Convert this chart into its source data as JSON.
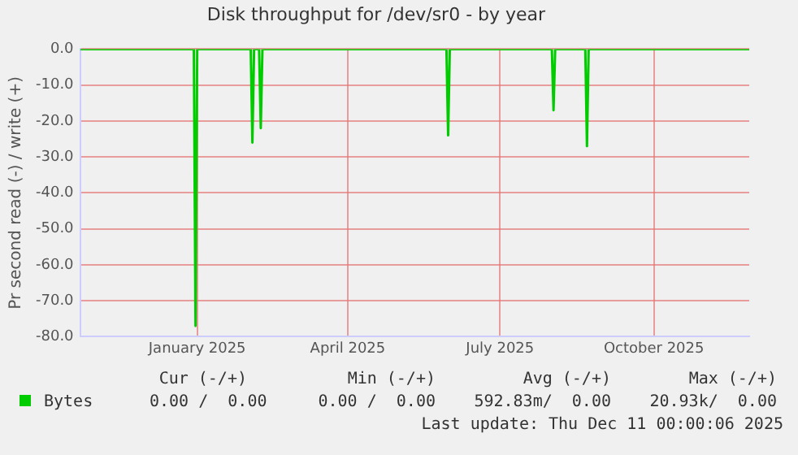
{
  "chart_data": {
    "type": "line",
    "title": "Disk throughput for /dev/sr0 - by year",
    "ylabel": "Pr second read (-) / write (+)",
    "x": [
      "2024-10-23",
      "2024-12-30",
      "2024-12-31",
      "2025-01-01",
      "2025-02-02",
      "2025-02-03",
      "2025-02-04",
      "2025-02-07",
      "2025-02-08",
      "2025-02-09",
      "2025-05-30",
      "2025-05-31",
      "2025-06-01",
      "2025-08-01",
      "2025-08-02",
      "2025-08-03",
      "2025-08-21",
      "2025-08-22",
      "2025-08-23",
      "2025-11-27"
    ],
    "series": [
      {
        "name": "Bytes",
        "color": "#00cc00",
        "values": [
          0,
          0,
          -77,
          0,
          0,
          -26,
          0,
          0,
          -22,
          0,
          0,
          -24,
          0,
          0,
          -17,
          0,
          0,
          -27,
          0,
          0
        ]
      }
    ],
    "xlim": [
      "2024-10-23",
      "2025-11-27"
    ],
    "xticks": [
      {
        "value": "2025-01-01",
        "label": "January 2025"
      },
      {
        "value": "2025-04-01",
        "label": "April 2025"
      },
      {
        "value": "2025-07-01",
        "label": "July 2025"
      },
      {
        "value": "2025-10-01",
        "label": "October 2025"
      }
    ],
    "ylim": [
      -80,
      0
    ],
    "yticks": [
      {
        "value": -80,
        "label": "-80.0"
      },
      {
        "value": -70,
        "label": "-70.0"
      },
      {
        "value": -60,
        "label": "-60.0"
      },
      {
        "value": -50,
        "label": "-50.0"
      },
      {
        "value": -40,
        "label": "-40.0"
      },
      {
        "value": -30,
        "label": "-30.0"
      },
      {
        "value": -20,
        "label": "-20.0"
      },
      {
        "value": -10,
        "label": "-10.0"
      },
      {
        "value": 0,
        "label": "0.0"
      }
    ],
    "grid": true,
    "legend": "bottom",
    "marker": "none",
    "line_style": "solid",
    "annotations": [
      "Cur (-/+)",
      "Min (-/+)",
      "Avg (-/+)",
      "Max (-/+)",
      "0.00 /  0.00",
      "0.00 /  0.00",
      "592.83m/  0.00",
      "20.93k/  0.00",
      "Last update: Thu Dec 11 00:00:06 2025"
    ]
  }
}
